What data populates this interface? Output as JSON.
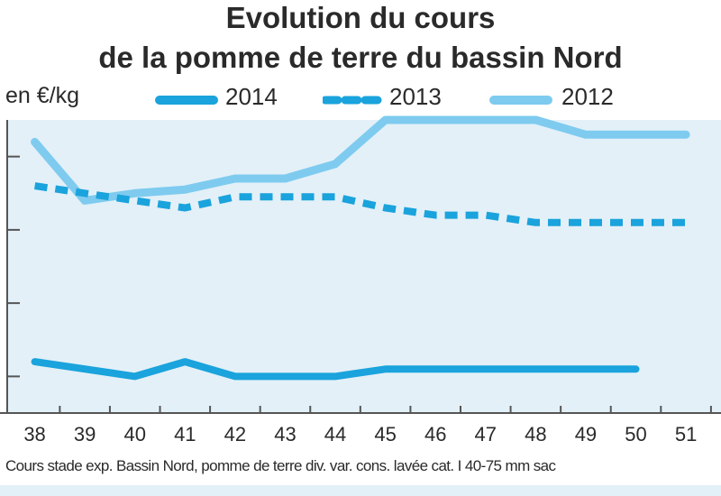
{
  "chart_data": {
    "type": "line",
    "title": "Evolution du cours",
    "subtitle": "de la pomme de terre du bassin Nord",
    "ylabel": "en €/kg",
    "categories": [
      "38",
      "39",
      "40",
      "41",
      "42",
      "43",
      "44",
      "45",
      "46",
      "47",
      "48",
      "49",
      "50",
      "51"
    ],
    "xlim": [
      37.45,
      51.7
    ],
    "ylim": [
      0.05,
      0.45
    ],
    "y_ticks": [
      0.1,
      0.2,
      0.3,
      0.4
    ],
    "y_tick_labels_visible": false,
    "grid": false,
    "legend_position": "top",
    "series": [
      {
        "name": "2014",
        "color": "#1aa3dc",
        "style": "solid",
        "x": [
          38,
          40,
          41,
          42,
          43,
          44,
          45,
          46,
          47,
          48,
          49,
          50
        ],
        "values": [
          0.12,
          0.1,
          0.12,
          0.1,
          0.1,
          0.1,
          0.11,
          0.11,
          0.11,
          0.11,
          0.11,
          0.11
        ]
      },
      {
        "name": "2013",
        "color": "#1aa3dc",
        "style": "dashed",
        "x": [
          38,
          39,
          40,
          41,
          42,
          43,
          44,
          45,
          46,
          47,
          48,
          49,
          50,
          51
        ],
        "values": [
          0.36,
          0.35,
          0.34,
          0.33,
          0.345,
          0.345,
          0.345,
          0.33,
          0.32,
          0.32,
          0.31,
          0.31,
          0.31,
          0.31
        ]
      },
      {
        "name": "2012",
        "color": "#7ecbef",
        "style": "solid",
        "x": [
          38,
          39,
          40,
          41,
          42,
          43,
          44,
          45,
          46,
          47,
          48,
          49,
          50,
          51
        ],
        "values": [
          0.42,
          0.34,
          0.35,
          0.355,
          0.37,
          0.37,
          0.39,
          0.45,
          0.45,
          0.45,
          0.45,
          0.43,
          0.43,
          0.43
        ]
      }
    ],
    "caption": "Cours stade exp. Bassin Nord, pomme de terre div. var. cons. lavée cat. I 40-75 mm sac"
  },
  "colors": {
    "plot_background": "#e3f0f8",
    "axis": "#555555"
  }
}
